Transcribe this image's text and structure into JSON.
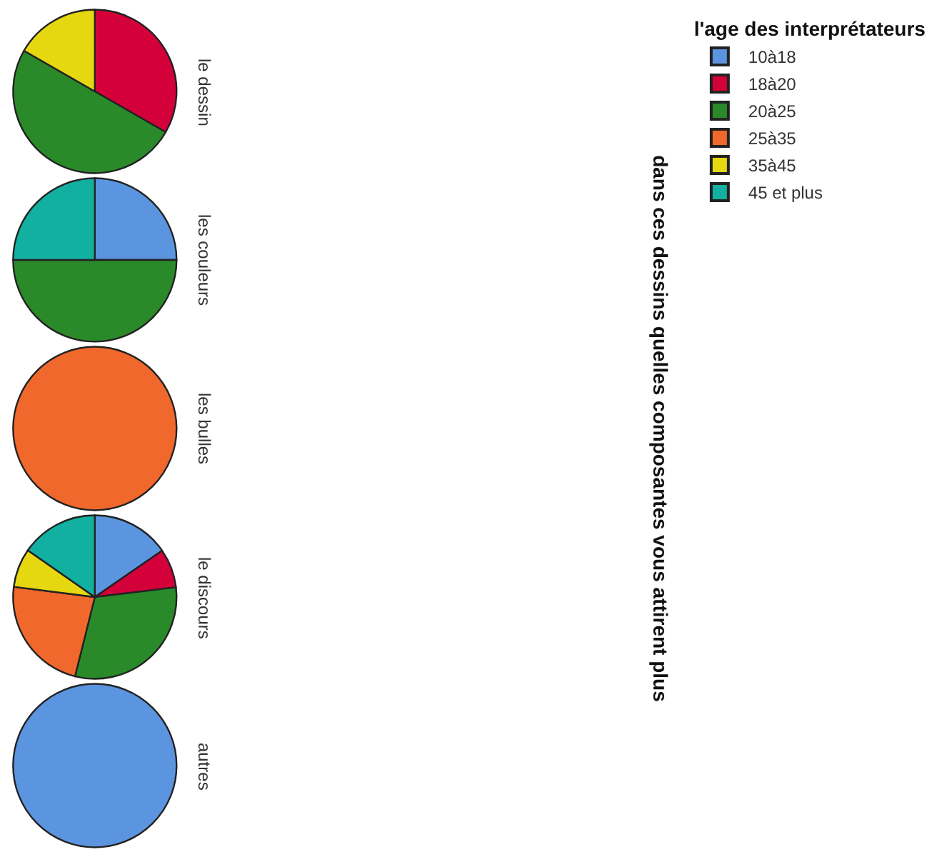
{
  "chart_data": [
    {
      "type": "pie",
      "title": "le dessin",
      "ylabel": "dans ces dessins quelles composantes vous attirent plus",
      "legend_title": "l'age des interprétateurs",
      "legend": "right",
      "categories": [
        "10à18",
        "18à20",
        "20à25",
        "25à35",
        "35à45",
        "45 et plus"
      ],
      "values": [
        0,
        33.3,
        50,
        0,
        16.7,
        0
      ],
      "colors": [
        "#5b95e0",
        "#d4003a",
        "#2a8a2a",
        "#f0682c",
        "#e6d810",
        "#12b0a0"
      ]
    },
    {
      "type": "pie",
      "title": "les couleurs",
      "values": [
        25,
        0,
        50,
        0,
        0,
        25
      ],
      "colors": [
        "#5b95e0",
        "#d4003a",
        "#2a8a2a",
        "#f0682c",
        "#e6d810",
        "#12b0a0"
      ]
    },
    {
      "type": "pie",
      "title": "les bulles",
      "values": [
        0,
        0,
        0,
        100,
        0,
        0
      ],
      "colors": [
        "#5b95e0",
        "#d4003a",
        "#2a8a2a",
        "#f0682c",
        "#e6d810",
        "#12b0a0"
      ]
    },
    {
      "type": "pie",
      "title": "le discours",
      "values": [
        15.4,
        7.7,
        30.8,
        23.1,
        7.7,
        15.3
      ],
      "colors": [
        "#5b95e0",
        "#d4003a",
        "#2a8a2a",
        "#f0682c",
        "#e6d810",
        "#12b0a0"
      ]
    },
    {
      "type": "pie",
      "title": "autres",
      "values": [
        100,
        0,
        0,
        0,
        0,
        0
      ],
      "colors": [
        "#5b95e0",
        "#d4003a",
        "#2a8a2a",
        "#f0682c",
        "#e6d810",
        "#12b0a0"
      ]
    }
  ]
}
